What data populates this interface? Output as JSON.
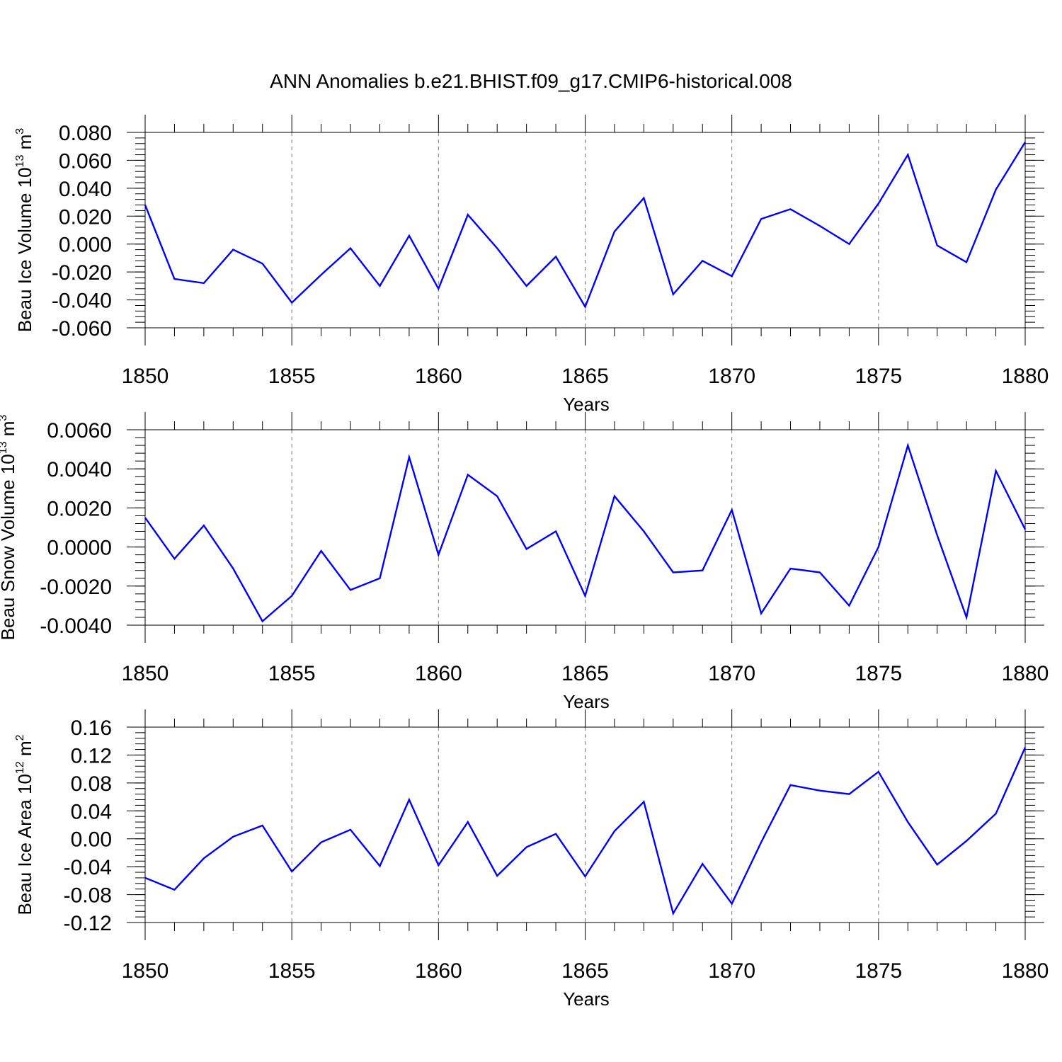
{
  "title": "ANN Anomalies b.e21.BHIST.f09_g17.CMIP6-historical.008",
  "colors": {
    "series": "#0000ff",
    "axes": "#000000",
    "grid": "#777777"
  },
  "chart_data": [
    {
      "type": "line",
      "ylabel_main": "Beau Ice Volume 10",
      "ylabel_sup": "13",
      "ylabel_unit": " m",
      "ylabel_unit_sup": "3",
      "xlabel": "Years",
      "xlim": [
        1850,
        1880
      ],
      "ylim": [
        -0.06,
        0.08
      ],
      "yticks": [
        -0.06,
        -0.04,
        -0.02,
        0.0,
        0.02,
        0.04,
        0.06,
        0.08
      ],
      "ytick_labels": [
        "-0.060",
        "-0.040",
        "-0.020",
        "0.000",
        "0.020",
        "0.040",
        "0.060",
        "0.080"
      ],
      "yminor_step": 0.004,
      "xticks": [
        1850,
        1855,
        1860,
        1865,
        1870,
        1875,
        1880
      ],
      "xtick_labels": [
        "1850",
        "1855",
        "1860",
        "1865",
        "1870",
        "1875",
        "1880"
      ],
      "grid_x": [
        1855,
        1860,
        1865,
        1870,
        1875
      ],
      "x": [
        1850,
        1851,
        1852,
        1853,
        1854,
        1855,
        1856,
        1857,
        1858,
        1859,
        1860,
        1861,
        1862,
        1863,
        1864,
        1865,
        1866,
        1867,
        1868,
        1869,
        1870,
        1871,
        1872,
        1873,
        1874,
        1875,
        1876,
        1877,
        1878,
        1879,
        1880
      ],
      "values": [
        0.028,
        -0.025,
        -0.028,
        -0.004,
        -0.014,
        -0.042,
        -0.022,
        -0.003,
        -0.03,
        0.006,
        -0.032,
        0.021,
        -0.003,
        -0.03,
        -0.009,
        -0.045,
        0.009,
        0.033,
        -0.036,
        -0.012,
        -0.023,
        0.018,
        0.025,
        0.013,
        0.0,
        0.029,
        0.064,
        -0.001,
        -0.013,
        0.039,
        0.073
      ]
    },
    {
      "type": "line",
      "ylabel_main": "Beau Snow Volume 10",
      "ylabel_sup": "13",
      "ylabel_unit": " m",
      "ylabel_unit_sup": "3",
      "xlabel": "Years",
      "xlim": [
        1850,
        1880
      ],
      "ylim": [
        -0.004,
        0.006
      ],
      "yticks": [
        -0.004,
        -0.002,
        0.0,
        0.002,
        0.004,
        0.006
      ],
      "ytick_labels": [
        "-0.0040",
        "-0.0020",
        "0.0000",
        "0.0020",
        "0.0040",
        "0.0060"
      ],
      "yminor_step": 0.0004,
      "xticks": [
        1850,
        1855,
        1860,
        1865,
        1870,
        1875,
        1880
      ],
      "xtick_labels": [
        "1850",
        "1855",
        "1860",
        "1865",
        "1870",
        "1875",
        "1880"
      ],
      "grid_x": [
        1855,
        1860,
        1865,
        1870,
        1875
      ],
      "x": [
        1850,
        1851,
        1852,
        1853,
        1854,
        1855,
        1856,
        1857,
        1858,
        1859,
        1860,
        1861,
        1862,
        1863,
        1864,
        1865,
        1866,
        1867,
        1868,
        1869,
        1870,
        1871,
        1872,
        1873,
        1874,
        1875,
        1876,
        1877,
        1878,
        1879,
        1880
      ],
      "values": [
        0.0015,
        -0.0006,
        0.0011,
        -0.0011,
        -0.0038,
        -0.0025,
        -0.0002,
        -0.0022,
        -0.0016,
        0.0046,
        -0.0004,
        0.0037,
        0.0026,
        -0.0001,
        0.0008,
        -0.0025,
        0.0026,
        0.0008,
        -0.0013,
        -0.0012,
        0.0019,
        -0.0034,
        -0.0011,
        -0.0013,
        -0.003,
        0.0,
        0.0052,
        0.0006,
        -0.0036,
        0.0039,
        0.0009
      ]
    },
    {
      "type": "line",
      "ylabel_main": "Beau Ice Area 10",
      "ylabel_sup": "12",
      "ylabel_unit": " m",
      "ylabel_unit_sup": "2",
      "xlabel": "Years",
      "xlim": [
        1850,
        1880
      ],
      "ylim": [
        -0.12,
        0.16
      ],
      "yticks": [
        -0.12,
        -0.08,
        -0.04,
        0.0,
        0.04,
        0.08,
        0.12,
        0.16
      ],
      "ytick_labels": [
        "-0.12",
        "-0.08",
        "-0.04",
        "0.00",
        "0.04",
        "0.08",
        "0.12",
        "0.16"
      ],
      "yminor_step": 0.008,
      "xticks": [
        1850,
        1855,
        1860,
        1865,
        1870,
        1875,
        1880
      ],
      "xtick_labels": [
        "1850",
        "1855",
        "1860",
        "1865",
        "1870",
        "1875",
        "1880"
      ],
      "grid_x": [
        1855,
        1860,
        1865,
        1870,
        1875
      ],
      "x": [
        1850,
        1851,
        1852,
        1853,
        1854,
        1855,
        1856,
        1857,
        1858,
        1859,
        1860,
        1861,
        1862,
        1863,
        1864,
        1865,
        1866,
        1867,
        1868,
        1869,
        1870,
        1871,
        1872,
        1873,
        1874,
        1875,
        1876,
        1877,
        1878,
        1879,
        1880
      ],
      "values": [
        -0.056,
        -0.073,
        -0.028,
        0.003,
        0.019,
        -0.047,
        -0.005,
        0.013,
        -0.039,
        0.056,
        -0.038,
        0.024,
        -0.053,
        -0.012,
        0.007,
        -0.054,
        0.011,
        0.053,
        -0.107,
        -0.036,
        -0.093,
        -0.005,
        0.077,
        0.069,
        0.064,
        0.096,
        0.024,
        -0.037,
        -0.003,
        0.036,
        0.131
      ]
    }
  ]
}
